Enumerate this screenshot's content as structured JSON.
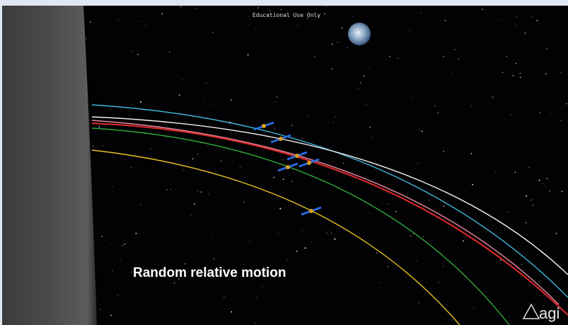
{
  "watermark": "Educational Use Only",
  "caption": "Random relative motion",
  "logo": "agi"
}
